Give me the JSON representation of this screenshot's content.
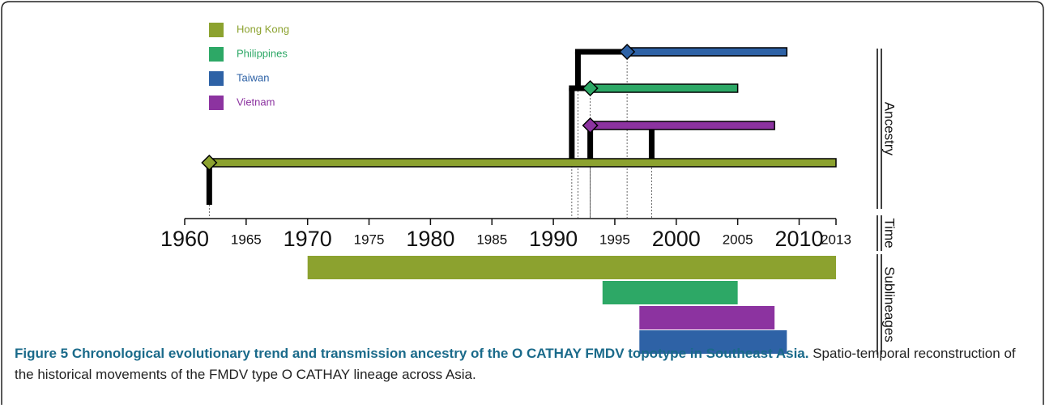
{
  "chart_data": {
    "type": "timeline",
    "xlim": [
      1960,
      2013
    ],
    "xticks": [
      1960,
      1965,
      1970,
      1975,
      1980,
      1985,
      1990,
      1995,
      2000,
      2005,
      2010,
      2013
    ],
    "series": [
      {
        "name": "Hong Kong",
        "color": "#8ca22f",
        "ancestry": [
          1962,
          2013
        ],
        "sublineage": [
          1970,
          2013
        ]
      },
      {
        "name": "Philippines",
        "color": "#2da866",
        "ancestry": [
          1993,
          2005
        ],
        "sublineage": [
          1994,
          2005
        ]
      },
      {
        "name": "Taiwan",
        "color": "#2e62a6",
        "ancestry": [
          1996,
          2009
        ],
        "sublineage": [
          1997,
          2009
        ]
      },
      {
        "name": "Vietnam",
        "color": "#8c33a0",
        "ancestry": [
          1993,
          2008
        ],
        "sublineage": [
          1997,
          2008
        ]
      }
    ],
    "events": [
      {
        "year": 1991.5,
        "from": "Hong Kong",
        "to": "Philippines"
      },
      {
        "year": 1992,
        "from": "Philippines",
        "to": "Taiwan"
      },
      {
        "year": 1993,
        "from": "Hong Kong",
        "to": "Vietnam"
      },
      {
        "year": 1998,
        "from": "Vietnam",
        "to": "Hong Kong"
      }
    ],
    "panel_labels": [
      "Ancestry",
      "Time",
      "Sublineages"
    ],
    "caption_title": "Figure 5 Chronological evolutionary trend and transmission ancestry of the O CATHAY FMDV topotype in Southeast Asia.",
    "caption_text": "Spatio-temporal reconstruction of the historical movements of the FMDV type O CATHAY lineage across Asia."
  }
}
